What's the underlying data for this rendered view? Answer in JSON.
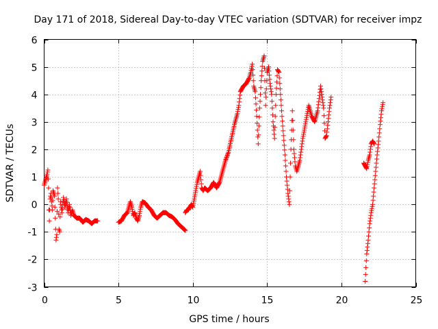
{
  "chart_data": {
    "type": "scatter",
    "title": "Day 171 of 2018, Sidereal Day-to-day VTEC variation (SDTVAR) for receiver impz",
    "xlabel": "GPS time / hours",
    "ylabel": "SDTVAR / TECUs",
    "xlim": [
      0,
      25
    ],
    "ylim": [
      -3,
      6
    ],
    "xticks": [
      0,
      5,
      10,
      15,
      20,
      25
    ],
    "xtick_labels": [
      "0",
      "5",
      "10",
      "15",
      "20",
      "25"
    ],
    "yticks": [
      -3,
      -2,
      -1,
      0,
      1,
      2,
      3,
      4,
      5,
      6
    ],
    "ytick_labels": [
      "-3",
      "-2",
      "-1",
      "0",
      "1",
      "2",
      "3",
      "4",
      "5",
      "6"
    ],
    "grid": true,
    "marker": "+",
    "color": "#ff0000",
    "series": [
      {
        "name": "SDTVAR",
        "segments": [
          [
            [
              0.0,
              0.7
            ],
            [
              0.1,
              0.9
            ],
            [
              0.2,
              1.1
            ],
            [
              0.25,
              1.25
            ],
            [
              0.3,
              0.6
            ],
            [
              0.32,
              -0.2
            ],
            [
              0.35,
              -0.6
            ],
            [
              0.4,
              0.2
            ],
            [
              0.45,
              0.4
            ],
            [
              0.5,
              0.1
            ],
            [
              0.55,
              -0.2
            ],
            [
              0.6,
              0.5
            ],
            [
              0.7,
              0.3
            ],
            [
              0.75,
              -0.5
            ],
            [
              0.8,
              -1.3
            ],
            [
              0.85,
              -1.1
            ],
            [
              0.9,
              0.6
            ],
            [
              0.95,
              0.2
            ],
            [
              1.0,
              -0.9
            ],
            [
              1.05,
              -1.0
            ],
            [
              1.1,
              0.1
            ],
            [
              1.2,
              -0.3
            ],
            [
              1.3,
              0.25
            ],
            [
              1.4,
              -0.1
            ],
            [
              1.5,
              0.2
            ],
            [
              1.6,
              -0.3
            ],
            [
              1.7,
              0.0
            ],
            [
              1.8,
              -0.4
            ],
            [
              1.9,
              -0.2
            ],
            [
              2.0,
              -0.4
            ],
            [
              2.2,
              -0.5
            ],
            [
              2.4,
              -0.5
            ],
            [
              2.6,
              -0.65
            ],
            [
              2.8,
              -0.55
            ],
            [
              3.0,
              -0.6
            ],
            [
              3.2,
              -0.7
            ],
            [
              3.4,
              -0.6
            ],
            [
              3.6,
              -0.6
            ]
          ],
          [
            [
              5.0,
              -0.65
            ],
            [
              5.2,
              -0.6
            ],
            [
              5.4,
              -0.4
            ],
            [
              5.6,
              -0.3
            ],
            [
              5.8,
              0.1
            ],
            [
              5.9,
              -0.1
            ],
            [
              6.0,
              -0.4
            ],
            [
              6.1,
              -0.3
            ],
            [
              6.2,
              -0.5
            ],
            [
              6.3,
              -0.6
            ],
            [
              6.4,
              -0.4
            ],
            [
              6.5,
              -0.1
            ],
            [
              6.6,
              0.1
            ],
            [
              6.8,
              0.05
            ],
            [
              7.0,
              -0.1
            ],
            [
              7.2,
              -0.2
            ],
            [
              7.4,
              -0.4
            ],
            [
              7.6,
              -0.5
            ],
            [
              7.8,
              -0.4
            ],
            [
              8.0,
              -0.3
            ],
            [
              8.2,
              -0.3
            ],
            [
              8.4,
              -0.4
            ],
            [
              8.6,
              -0.45
            ],
            [
              8.8,
              -0.55
            ],
            [
              9.0,
              -0.7
            ],
            [
              9.2,
              -0.8
            ],
            [
              9.4,
              -0.9
            ],
            [
              9.5,
              -0.95
            ]
          ],
          [
            [
              9.5,
              -0.3
            ],
            [
              9.6,
              -0.2
            ],
            [
              9.7,
              -0.2
            ],
            [
              9.8,
              -0.1
            ],
            [
              9.9,
              0.0
            ],
            [
              10.0,
              -0.1
            ],
            [
              10.1,
              0.2
            ],
            [
              10.2,
              0.5
            ],
            [
              10.3,
              0.8
            ],
            [
              10.4,
              1.0
            ],
            [
              10.5,
              1.2
            ],
            [
              10.6,
              0.6
            ],
            [
              10.7,
              0.5
            ],
            [
              10.8,
              0.6
            ],
            [
              11.0,
              0.5
            ],
            [
              11.2,
              0.6
            ],
            [
              11.4,
              0.8
            ],
            [
              11.6,
              0.6
            ],
            [
              11.8,
              0.8
            ],
            [
              12.0,
              1.2
            ],
            [
              12.2,
              1.6
            ],
            [
              12.4,
              1.9
            ],
            [
              12.6,
              2.4
            ],
            [
              12.8,
              2.9
            ],
            [
              13.0,
              3.3
            ],
            [
              13.1,
              3.6
            ],
            [
              13.2,
              4.1
            ],
            [
              13.4,
              4.3
            ],
            [
              13.6,
              4.4
            ],
            [
              13.8,
              4.6
            ],
            [
              13.9,
              4.8
            ],
            [
              14.0,
              5.1
            ],
            [
              14.1,
              4.3
            ],
            [
              14.2,
              4.1
            ],
            [
              14.3,
              3.2
            ],
            [
              14.4,
              2.2
            ],
            [
              14.5,
              3.5
            ],
            [
              14.6,
              4.5
            ],
            [
              14.7,
              5.2
            ],
            [
              14.8,
              5.4
            ],
            [
              14.9,
              3.6
            ],
            [
              15.0,
              4.8
            ],
            [
              15.1,
              5.0
            ],
            [
              15.2,
              4.4
            ],
            [
              15.3,
              4.0
            ],
            [
              15.4,
              3.0
            ],
            [
              15.5,
              2.4
            ],
            [
              15.6,
              4.0
            ],
            [
              15.7,
              4.9
            ],
            [
              15.8,
              4.8
            ],
            [
              15.9,
              4.0
            ],
            [
              16.0,
              3.2
            ],
            [
              16.1,
              2.5
            ],
            [
              16.2,
              1.8
            ],
            [
              16.3,
              1.0
            ],
            [
              16.4,
              0.4
            ],
            [
              16.5,
              0.0
            ],
            [
              16.6,
              2.0
            ],
            [
              16.7,
              3.4
            ],
            [
              16.8,
              2.0
            ],
            [
              16.9,
              1.4
            ],
            [
              17.0,
              1.2
            ],
            [
              17.2,
              1.6
            ],
            [
              17.4,
              2.4
            ],
            [
              17.6,
              3.0
            ],
            [
              17.8,
              3.6
            ],
            [
              18.0,
              3.2
            ],
            [
              18.2,
              3.0
            ],
            [
              18.4,
              3.4
            ],
            [
              18.6,
              4.3
            ],
            [
              18.8,
              3.5
            ],
            [
              18.9,
              2.4
            ],
            [
              19.0,
              2.5
            ],
            [
              19.2,
              3.5
            ],
            [
              19.3,
              3.9
            ]
          ],
          [
            [
              21.5,
              1.5
            ],
            [
              21.7,
              1.3
            ],
            [
              21.8,
              1.6
            ],
            [
              21.9,
              1.8
            ],
            [
              22.0,
              2.2
            ],
            [
              22.1,
              2.3
            ],
            [
              22.2,
              2.2
            ]
          ],
          [
            [
              21.6,
              -2.8
            ],
            [
              21.7,
              -1.8
            ],
            [
              21.8,
              -1.3
            ],
            [
              21.9,
              -0.7
            ],
            [
              22.0,
              -0.3
            ],
            [
              22.1,
              0.0
            ],
            [
              22.2,
              0.6
            ],
            [
              22.3,
              1.2
            ],
            [
              22.4,
              1.8
            ],
            [
              22.5,
              2.3
            ],
            [
              22.6,
              2.9
            ],
            [
              22.7,
              3.4
            ],
            [
              22.8,
              3.7
            ]
          ]
        ]
      }
    ]
  }
}
